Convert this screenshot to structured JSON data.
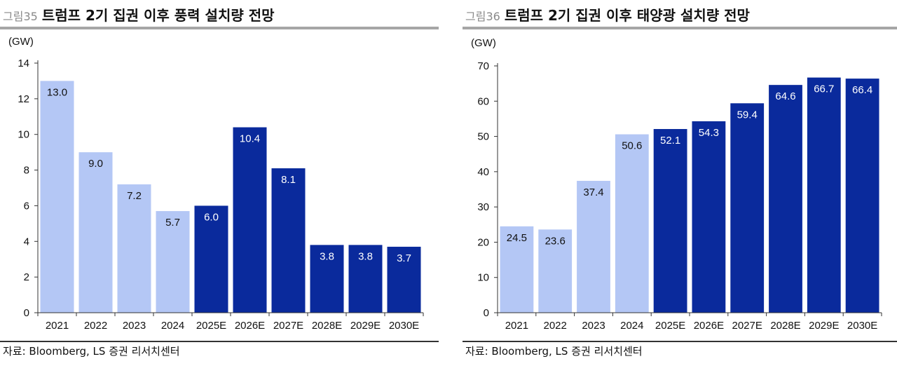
{
  "figures": [
    {
      "fig_label": "그림35",
      "title": "트럼프 2기 집권 이후 풍력 설치량 전망",
      "unit": "(GW)",
      "source": "자료: Bloomberg, LS 증권 리서치센터"
    },
    {
      "fig_label": "그림36",
      "title": "트럼프 2기 집권 이후 태양광 설치량 전망",
      "unit": "(GW)",
      "source": "자료: Bloomberg, LS 증권 리서치센터"
    }
  ],
  "colors": {
    "actual": "#b4c7f5",
    "forecast": "#0a2a9c",
    "axis": "#333333"
  },
  "chart_data": [
    {
      "type": "bar",
      "title": "트럼프 2기 집권 이후 풍력 설치량 전망",
      "ylabel": "(GW)",
      "xlabel": "",
      "categories": [
        "2021",
        "2022",
        "2023",
        "2024",
        "2025E",
        "2026E",
        "2027E",
        "2028E",
        "2029E",
        "2030E"
      ],
      "values": [
        13.0,
        9.0,
        7.2,
        5.7,
        6.0,
        10.4,
        8.1,
        3.8,
        3.8,
        3.7
      ],
      "data_labels": [
        "13.0",
        "9.0",
        "7.2",
        "5.7",
        "6.0",
        "10.4",
        "8.1",
        "3.8",
        "3.8",
        "3.7"
      ],
      "forecast": [
        false,
        false,
        false,
        false,
        true,
        true,
        true,
        true,
        true,
        true
      ],
      "ylim": [
        0,
        14
      ],
      "yticks": [
        0,
        2,
        4,
        6,
        8,
        10,
        12,
        14
      ],
      "grid": false,
      "legend": "none"
    },
    {
      "type": "bar",
      "title": "트럼프 2기 집권 이후 태양광 설치량 전망",
      "ylabel": "(GW)",
      "xlabel": "",
      "categories": [
        "2021",
        "2022",
        "2023",
        "2024",
        "2025E",
        "2026E",
        "2027E",
        "2028E",
        "2029E",
        "2030E"
      ],
      "values": [
        24.5,
        23.6,
        37.4,
        50.6,
        52.1,
        54.3,
        59.4,
        64.6,
        66.7,
        66.4
      ],
      "data_labels": [
        "24.5",
        "23.6",
        "37.4",
        "50.6",
        "52.1",
        "54.3",
        "59.4",
        "64.6",
        "66.7",
        "66.4"
      ],
      "forecast": [
        false,
        false,
        false,
        false,
        true,
        true,
        true,
        true,
        true,
        true
      ],
      "ylim": [
        0,
        70
      ],
      "yticks": [
        0,
        10,
        20,
        30,
        40,
        50,
        60,
        70
      ],
      "grid": false,
      "legend": "none"
    }
  ]
}
